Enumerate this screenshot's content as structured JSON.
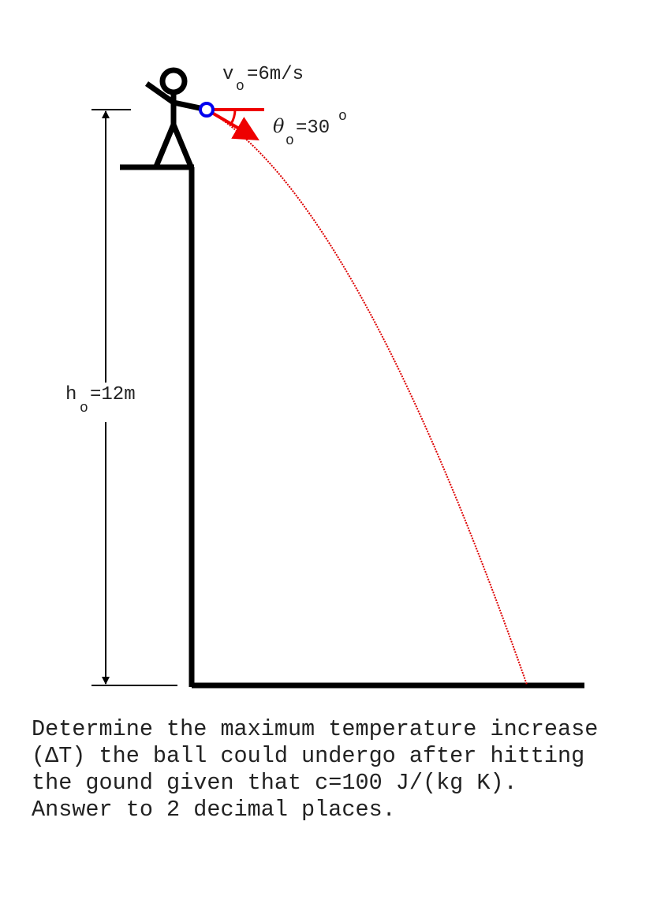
{
  "labels": {
    "velocity": {
      "symbol": "v",
      "subscript": "o",
      "value": "=6m/s"
    },
    "angle": {
      "symbol": "θ",
      "subscript": "o",
      "value": "=30",
      "superscript": "o"
    },
    "height": {
      "symbol": "h",
      "subscript": "o",
      "value": "=12m"
    }
  },
  "question": {
    "lines": [
      "Determine the maximum temperature increase",
      "(ΔT) the ball could undergo after hitting",
      "the gound given that c=100 J/(kg K).",
      "Answer to 2 decimal places."
    ]
  }
}
